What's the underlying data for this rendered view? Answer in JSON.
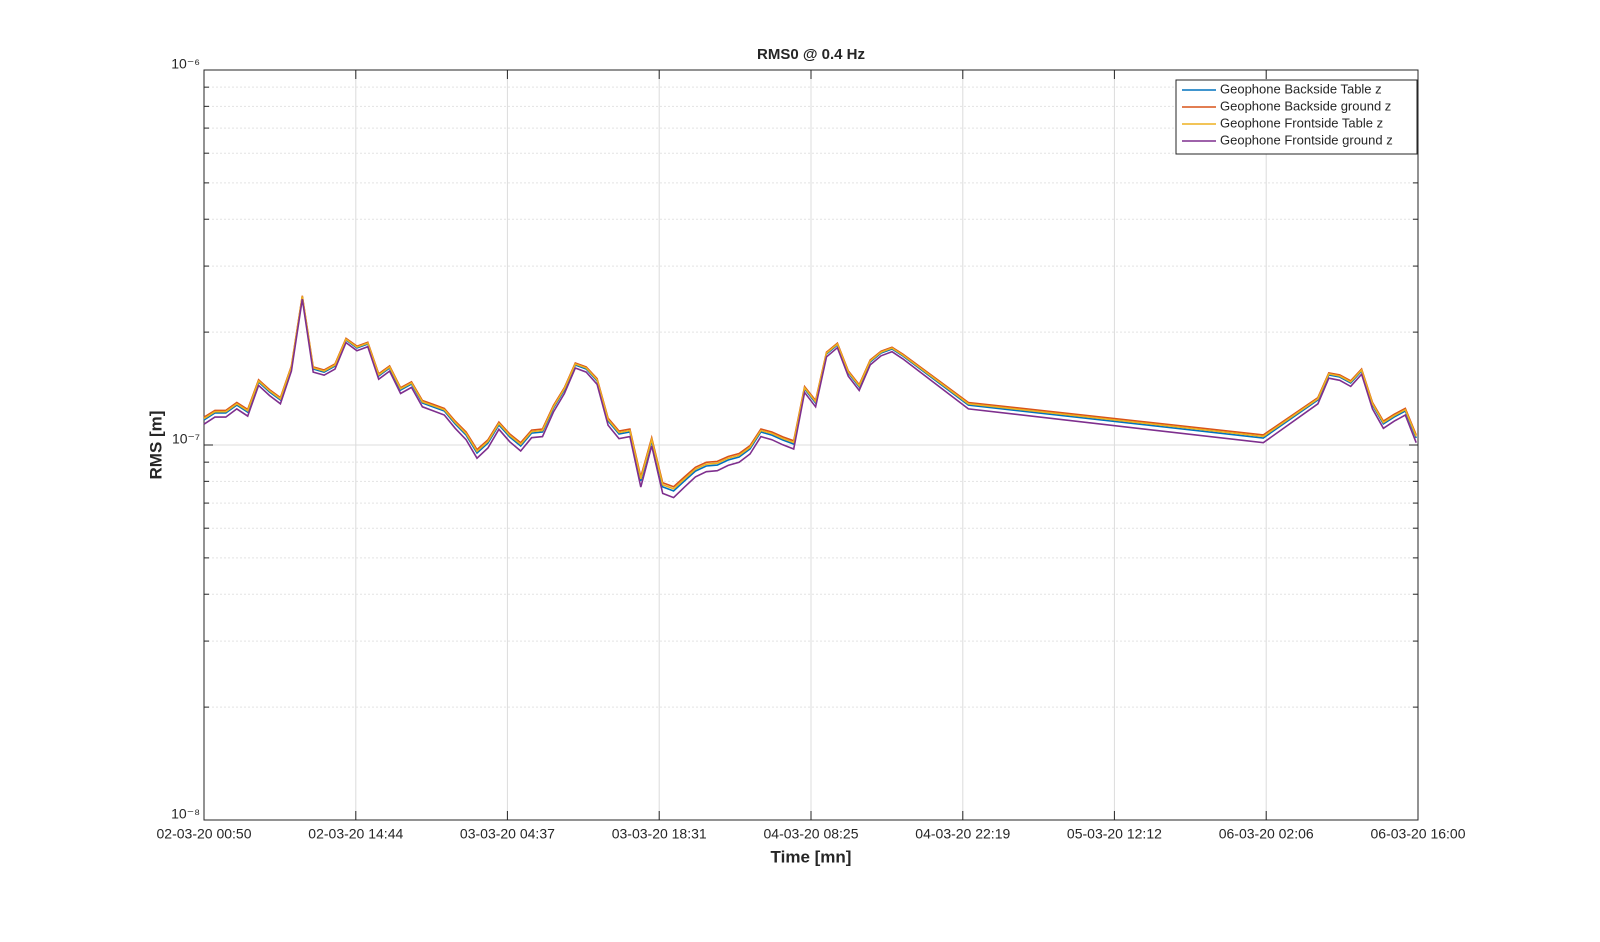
{
  "chart_data": {
    "type": "line",
    "title": "RMS0 @ 0.4 Hz",
    "xlabel": "Time [mn]",
    "ylabel": "RMS [m]",
    "log_y": true,
    "grid": true,
    "legend_position": "upper right",
    "x": [
      "02-03-20 00:50",
      "02-03-20 01:50",
      "02-03-20 02:50",
      "02-03-20 03:50",
      "02-03-20 04:50",
      "02-03-20 05:50",
      "02-03-20 06:50",
      "02-03-20 07:50",
      "02-03-20 08:50",
      "02-03-20 09:50",
      "02-03-20 10:50",
      "02-03-20 11:50",
      "02-03-20 12:50",
      "02-03-20 13:50",
      "02-03-20 14:50",
      "02-03-20 15:50",
      "02-03-20 16:50",
      "02-03-20 17:50",
      "02-03-20 18:50",
      "02-03-20 19:50",
      "02-03-20 20:50",
      "02-03-20 21:50",
      "02-03-20 22:50",
      "02-03-20 23:50",
      "03-03-20 00:50",
      "03-03-20 01:50",
      "03-03-20 02:50",
      "03-03-20 03:50",
      "03-03-20 04:50",
      "03-03-20 05:50",
      "03-03-20 06:50",
      "03-03-20 07:50",
      "03-03-20 08:50",
      "03-03-20 09:50",
      "03-03-20 10:50",
      "03-03-20 11:50",
      "03-03-20 12:50",
      "03-03-20 13:50",
      "03-03-20 14:50",
      "03-03-20 15:50",
      "03-03-20 16:50",
      "03-03-20 17:50",
      "03-03-20 18:50",
      "03-03-20 19:50",
      "03-03-20 20:50",
      "03-03-20 21:50",
      "03-03-20 22:50",
      "03-03-20 23:50",
      "04-03-20 00:50",
      "04-03-20 01:50",
      "04-03-20 02:50",
      "04-03-20 03:50",
      "04-03-20 04:50",
      "04-03-20 05:50",
      "04-03-20 06:50",
      "04-03-20 07:50",
      "04-03-20 08:50",
      "04-03-20 09:50",
      "04-03-20 10:50",
      "04-03-20 11:50",
      "04-03-20 12:50",
      "04-03-20 13:50",
      "04-03-20 14:50",
      "04-03-20 15:50",
      "04-03-20 16:50",
      "04-03-20 22:50",
      "06-03-20 01:50",
      "06-03-20 06:50",
      "06-03-20 07:50",
      "06-03-20 08:50",
      "06-03-20 09:50",
      "06-03-20 10:50",
      "06-03-20 11:50",
      "06-03-20 12:50",
      "06-03-20 13:50",
      "06-03-20 14:50",
      "06-03-20 15:50"
    ],
    "series": [
      {
        "name": "Geophone Backside Table z",
        "color": "#0072BD",
        "values": [
          1.166e-07,
          1.217e-07,
          1.217e-07,
          1.278e-07,
          1.224e-07,
          1.472e-07,
          1.385e-07,
          1.318e-07,
          1.604e-07,
          2.48e-07,
          1.595e-07,
          1.565e-07,
          1.624e-07,
          1.905e-07,
          1.814e-07,
          1.859e-07,
          1.528e-07,
          1.604e-07,
          1.402e-07,
          1.454e-07,
          1.294e-07,
          1.263e-07,
          1.232e-07,
          1.138e-07,
          1.063e-07,
          9.52e-08,
          1.012e-07,
          1.131e-07,
          1.05e-07,
          9.94e-08,
          1.076e-07,
          1.083e-07,
          1.255e-07,
          1.402e-07,
          1.634e-07,
          1.595e-07,
          1.482e-07,
          1.159e-07,
          1.07e-07,
          1.083e-07,
          8.02e-08,
          1.025e-07,
          7.73e-08,
          7.54e-08,
          8.02e-08,
          8.52e-08,
          8.79e-08,
          8.84e-08,
          9.12e-08,
          9.29e-08,
          9.76e-08,
          1.083e-07,
          1.063e-07,
          1.031e-07,
          1.006e-07,
          1.411e-07,
          1.294e-07,
          1.748e-07,
          1.848e-07,
          1.556e-07,
          1.428e-07,
          1.665e-07,
          1.759e-07,
          1.803e-07,
          1.727e-07,
          1.278e-07,
          1.044e-07,
          1.318e-07,
          1.537e-07,
          1.518e-07,
          1.463e-07,
          1.575e-07,
          1.278e-07,
          1.138e-07,
          1.188e-07,
          1.232e-07,
          1.044e-07
        ]
      },
      {
        "name": "Geophone Backside ground z",
        "color": "#D95319",
        "values": [
          1.186e-07,
          1.237e-07,
          1.237e-07,
          1.298e-07,
          1.244e-07,
          1.492e-07,
          1.405e-07,
          1.338e-07,
          1.624e-07,
          2.5e-07,
          1.615e-07,
          1.585e-07,
          1.644e-07,
          1.925e-07,
          1.834e-07,
          1.879e-07,
          1.548e-07,
          1.624e-07,
          1.422e-07,
          1.474e-07,
          1.314e-07,
          1.283e-07,
          1.252e-07,
          1.158e-07,
          1.083e-07,
          9.72e-08,
          1.032e-07,
          1.151e-07,
          1.07e-07,
          1.014e-07,
          1.096e-07,
          1.103e-07,
          1.275e-07,
          1.422e-07,
          1.654e-07,
          1.615e-07,
          1.502e-07,
          1.179e-07,
          1.09e-07,
          1.103e-07,
          8.22e-08,
          1.045e-07,
          7.93e-08,
          7.74e-08,
          8.22e-08,
          8.72e-08,
          8.99e-08,
          9.04e-08,
          9.32e-08,
          9.49e-08,
          9.96e-08,
          1.103e-07,
          1.083e-07,
          1.051e-07,
          1.026e-07,
          1.431e-07,
          1.314e-07,
          1.768e-07,
          1.868e-07,
          1.576e-07,
          1.448e-07,
          1.685e-07,
          1.779e-07,
          1.823e-07,
          1.747e-07,
          1.298e-07,
          1.064e-07,
          1.338e-07,
          1.557e-07,
          1.538e-07,
          1.483e-07,
          1.595e-07,
          1.298e-07,
          1.158e-07,
          1.208e-07,
          1.252e-07,
          1.064e-07
        ]
      },
      {
        "name": "Geophone Frontside Table z",
        "color": "#EDB120",
        "values": [
          1.176e-07,
          1.227e-07,
          1.227e-07,
          1.288e-07,
          1.234e-07,
          1.482e-07,
          1.395e-07,
          1.328e-07,
          1.614e-07,
          2.49e-07,
          1.605e-07,
          1.575e-07,
          1.634e-07,
          1.915e-07,
          1.824e-07,
          1.869e-07,
          1.538e-07,
          1.614e-07,
          1.412e-07,
          1.464e-07,
          1.304e-07,
          1.273e-07,
          1.242e-07,
          1.148e-07,
          1.073e-07,
          9.62e-08,
          1.022e-07,
          1.141e-07,
          1.06e-07,
          1.004e-07,
          1.086e-07,
          1.093e-07,
          1.265e-07,
          1.412e-07,
          1.644e-07,
          1.605e-07,
          1.492e-07,
          1.169e-07,
          1.08e-07,
          1.093e-07,
          8.12e-08,
          1.035e-07,
          7.83e-08,
          7.64e-08,
          8.12e-08,
          8.62e-08,
          8.89e-08,
          8.94e-08,
          9.22e-08,
          9.39e-08,
          9.86e-08,
          1.093e-07,
          1.073e-07,
          1.041e-07,
          1.016e-07,
          1.421e-07,
          1.304e-07,
          1.758e-07,
          1.858e-07,
          1.566e-07,
          1.438e-07,
          1.675e-07,
          1.769e-07,
          1.813e-07,
          1.737e-07,
          1.288e-07,
          1.054e-07,
          1.328e-07,
          1.547e-07,
          1.528e-07,
          1.473e-07,
          1.585e-07,
          1.288e-07,
          1.148e-07,
          1.198e-07,
          1.242e-07,
          1.054e-07
        ]
      },
      {
        "name": "Geophone Frontside ground z",
        "color": "#7E2F8E",
        "values": [
          1.136e-07,
          1.187e-07,
          1.187e-07,
          1.248e-07,
          1.194e-07,
          1.442e-07,
          1.355e-07,
          1.288e-07,
          1.574e-07,
          2.45e-07,
          1.565e-07,
          1.535e-07,
          1.594e-07,
          1.875e-07,
          1.784e-07,
          1.829e-07,
          1.498e-07,
          1.574e-07,
          1.372e-07,
          1.424e-07,
          1.264e-07,
          1.233e-07,
          1.202e-07,
          1.108e-07,
          1.033e-07,
          9.22e-08,
          9.82e-08,
          1.101e-07,
          1.02e-07,
          9.64e-08,
          1.046e-07,
          1.053e-07,
          1.225e-07,
          1.372e-07,
          1.604e-07,
          1.565e-07,
          1.452e-07,
          1.129e-07,
          1.04e-07,
          1.053e-07,
          7.72e-08,
          9.95e-08,
          7.43e-08,
          7.24e-08,
          7.72e-08,
          8.22e-08,
          8.49e-08,
          8.54e-08,
          8.82e-08,
          8.99e-08,
          9.46e-08,
          1.053e-07,
          1.033e-07,
          1.001e-07,
          9.76e-08,
          1.381e-07,
          1.264e-07,
          1.718e-07,
          1.818e-07,
          1.526e-07,
          1.398e-07,
          1.635e-07,
          1.729e-07,
          1.773e-07,
          1.697e-07,
          1.248e-07,
          1.014e-07,
          1.288e-07,
          1.507e-07,
          1.488e-07,
          1.433e-07,
          1.545e-07,
          1.248e-07,
          1.108e-07,
          1.158e-07,
          1.202e-07,
          1.014e-07
        ]
      }
    ],
    "xlim": [
      "02-03-20 00:50",
      "06-03-20 16:00"
    ],
    "xticks": [
      "02-03-20 00:50",
      "02-03-20 14:44",
      "03-03-20 04:37",
      "03-03-20 18:31",
      "04-03-20 08:25",
      "04-03-20 22:19",
      "05-03-20 12:12",
      "06-03-20 02:06",
      "06-03-20 16:00"
    ],
    "ylim": [
      1e-08,
      1e-06
    ],
    "yticks": [
      {
        "value": 1e-08,
        "label": "10⁻⁸"
      },
      {
        "value": 1e-07,
        "label": "10⁻⁷"
      },
      {
        "value": 1e-06,
        "label": "10⁻⁶"
      }
    ],
    "yminorticks": [
      2e-08,
      3e-08,
      4e-08,
      5e-08,
      6e-08,
      7e-08,
      8e-08,
      9e-08,
      2e-07,
      3e-07,
      4e-07,
      5e-07,
      6e-07,
      7e-07,
      8e-07,
      9e-07
    ]
  }
}
